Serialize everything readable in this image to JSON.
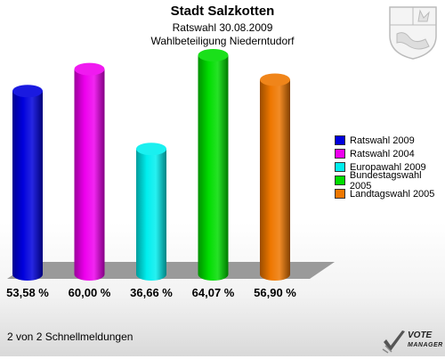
{
  "header": {
    "title": "Stadt Salzkotten",
    "subtitle": "Ratswahl 30.08.2009",
    "location": "Wahlbeteiligung Niederntudorf"
  },
  "chart_data": {
    "type": "bar",
    "title": "Stadt Salzkotten",
    "categories": [
      "Ratswahl 2009",
      "Ratswahl 2004",
      "Europawahl 2009",
      "Bundestagswahl 2005",
      "Landtagswahl 2005"
    ],
    "values": [
      53.58,
      60.0,
      36.66,
      64.07,
      56.9
    ],
    "value_labels": [
      "53,58 %",
      "60,00 %",
      "36,66 %",
      "64,07 %",
      "56,90 %"
    ],
    "colors": [
      "#0000dd",
      "#ee00ee",
      "#00eeee",
      "#00dd00",
      "#ee7700"
    ],
    "ylim": [
      0,
      100
    ],
    "grid": false,
    "legend_position": "right"
  },
  "footer": {
    "text": "2 von 2 Schnellmeldungen"
  },
  "brand": {
    "line1": "VOTE",
    "line2": "MANAGER"
  }
}
